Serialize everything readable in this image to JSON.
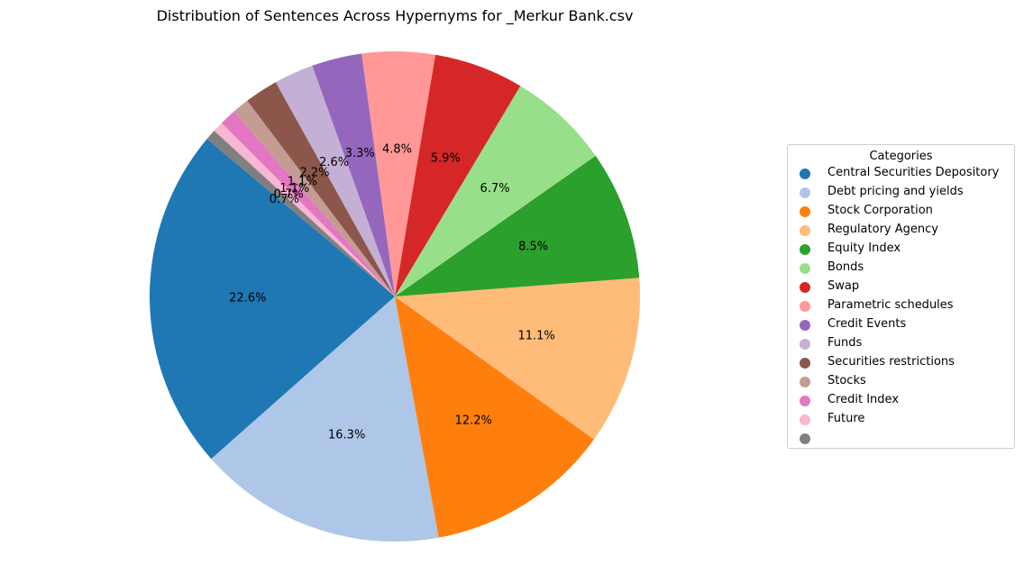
{
  "chart_data": {
    "type": "pie",
    "title": "Distribution of Sentences Across Hypernyms for _Merkur Bank.csv",
    "legend_title": "Categories",
    "legend_position": "right",
    "start_angle_deg": 140,
    "direction": "counterclockwise",
    "slices": [
      {
        "label": "Central Securities Depository",
        "value": 22.6,
        "pct_label": "22.6%",
        "color": "#1f77b4"
      },
      {
        "label": "Debt pricing and yields",
        "value": 16.3,
        "pct_label": "16.3%",
        "color": "#aec7e8"
      },
      {
        "label": "Stock Corporation",
        "value": 12.2,
        "pct_label": "12.2%",
        "color": "#ff7f0e"
      },
      {
        "label": "Regulatory Agency",
        "value": 11.1,
        "pct_label": "11.1%",
        "color": "#ffbb78"
      },
      {
        "label": "Equity Index",
        "value": 8.5,
        "pct_label": "8.5%",
        "color": "#2ca02c"
      },
      {
        "label": "Bonds",
        "value": 6.7,
        "pct_label": "6.7%",
        "color": "#98df8a"
      },
      {
        "label": "Swap",
        "value": 5.9,
        "pct_label": "5.9%",
        "color": "#d62728"
      },
      {
        "label": "Parametric schedules",
        "value": 4.8,
        "pct_label": "4.8%",
        "color": "#ff9896"
      },
      {
        "label": "Credit Events",
        "value": 3.3,
        "pct_label": "3.3%",
        "color": "#9467bd"
      },
      {
        "label": "Funds",
        "value": 2.6,
        "pct_label": "2.6%",
        "color": "#c5b0d5"
      },
      {
        "label": "Securities restrictions",
        "value": 2.2,
        "pct_label": "2.2%",
        "color": "#8c564b"
      },
      {
        "label": "Stocks",
        "value": 1.1,
        "pct_label": "1.1%",
        "color": "#c49c94"
      },
      {
        "label": "Credit Index",
        "value": 1.1,
        "pct_label": "1.1%",
        "color": "#e377c2"
      },
      {
        "label": "Future",
        "value": 0.7,
        "pct_label": "0.7%",
        "color": "#f7b6d2"
      },
      {
        "label": "",
        "value": 0.7,
        "pct_label": "0.7%",
        "color": "#7f7f7f"
      }
    ]
  }
}
